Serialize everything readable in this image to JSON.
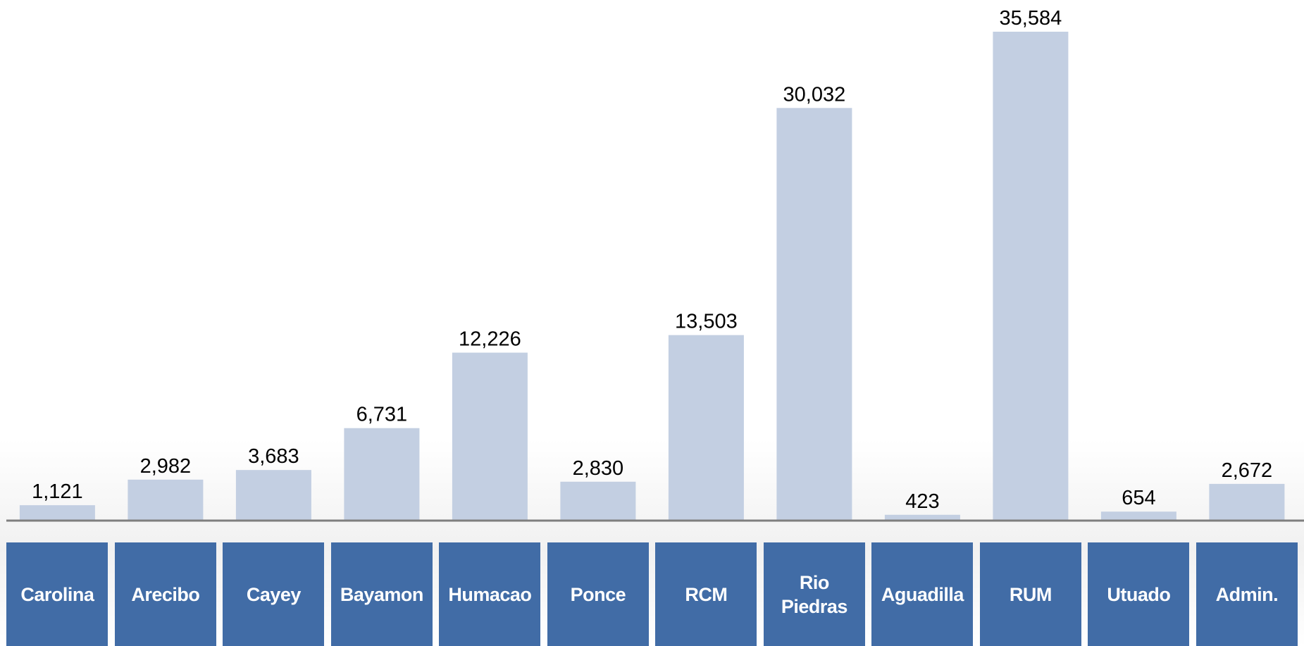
{
  "chart_data": {
    "type": "bar",
    "categories": [
      "Carolina",
      "Arecibo",
      "Cayey",
      "Bayamon",
      "Humacao",
      "Ponce",
      "RCM",
      "Rio Piedras",
      "Aguadilla",
      "RUM",
      "Utuado",
      "Admin."
    ],
    "values": [
      1121,
      2982,
      3683,
      6731,
      12226,
      2830,
      13503,
      30032,
      423,
      35584,
      654,
      2672
    ],
    "value_labels": [
      "1,121",
      "2,982",
      "3,683",
      "6,731",
      "12,226",
      "2,830",
      "13,503",
      "30,032",
      "423",
      "35,584",
      "654",
      "2,672"
    ],
    "color": "#c3cfe2",
    "label_color": "#416ca6"
  }
}
